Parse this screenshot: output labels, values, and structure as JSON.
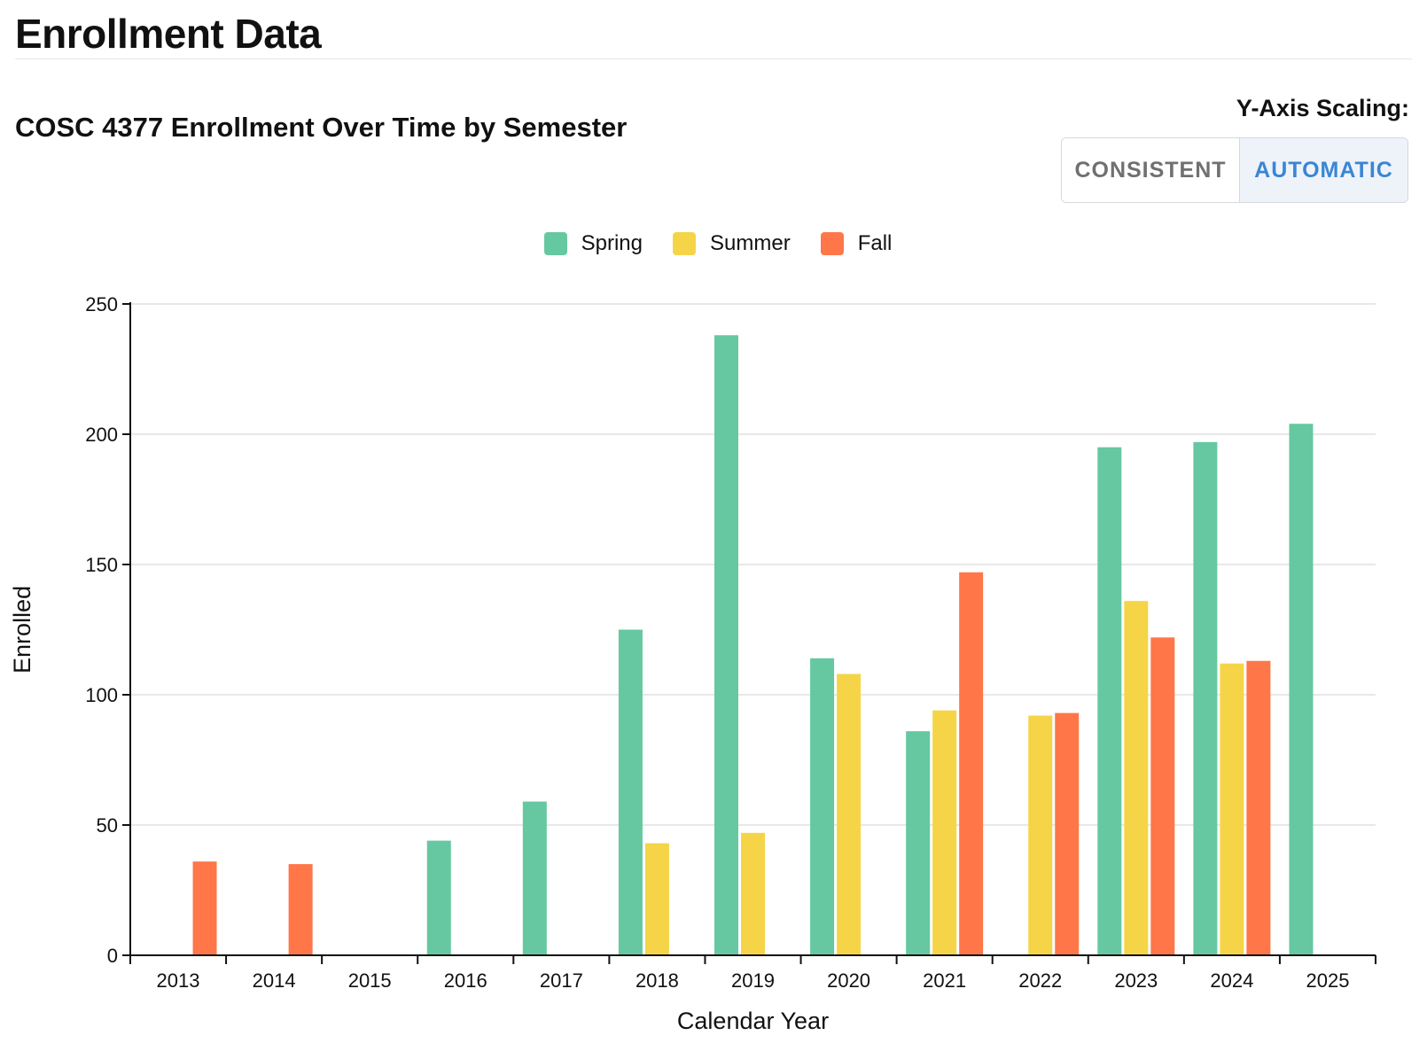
{
  "page": {
    "title": "Enrollment Data"
  },
  "chart_title": "COSC 4377 Enrollment Over Time by Semester",
  "scaling": {
    "label": "Y-Axis Scaling:",
    "options": [
      "CONSISTENT",
      "AUTOMATIC"
    ],
    "selected": "AUTOMATIC"
  },
  "colors": {
    "spring": "#66c8a0",
    "summer": "#f5d547",
    "fall": "#ff7649",
    "grid": "#e0e0e0",
    "axis": "#111111",
    "accent": "#3a86d4"
  },
  "legend": [
    {
      "label": "Spring",
      "color": "#66c8a0"
    },
    {
      "label": "Summer",
      "color": "#f5d547"
    },
    {
      "label": "Fall",
      "color": "#ff7649"
    }
  ],
  "chart_data": {
    "type": "bar",
    "title": "COSC 4377 Enrollment Over Time by Semester",
    "xlabel": "Calendar Year",
    "ylabel": "Enrolled",
    "categories": [
      "2013",
      "2014",
      "2015",
      "2016",
      "2017",
      "2018",
      "2019",
      "2020",
      "2021",
      "2022",
      "2023",
      "2024",
      "2025"
    ],
    "series": [
      {
        "name": "Spring",
        "color": "#66c8a0",
        "values": [
          null,
          null,
          null,
          44,
          59,
          125,
          238,
          114,
          86,
          null,
          195,
          197,
          204
        ]
      },
      {
        "name": "Summer",
        "color": "#f5d547",
        "values": [
          null,
          null,
          null,
          null,
          null,
          43,
          47,
          108,
          94,
          92,
          136,
          112,
          null
        ]
      },
      {
        "name": "Fall",
        "color": "#ff7649",
        "values": [
          36,
          35,
          null,
          null,
          null,
          null,
          null,
          null,
          147,
          93,
          122,
          113,
          null
        ]
      }
    ],
    "ylim": [
      0,
      250
    ],
    "yticks": [
      0,
      50,
      100,
      150,
      200,
      250
    ],
    "grid": true,
    "legend_position": "top-center"
  }
}
